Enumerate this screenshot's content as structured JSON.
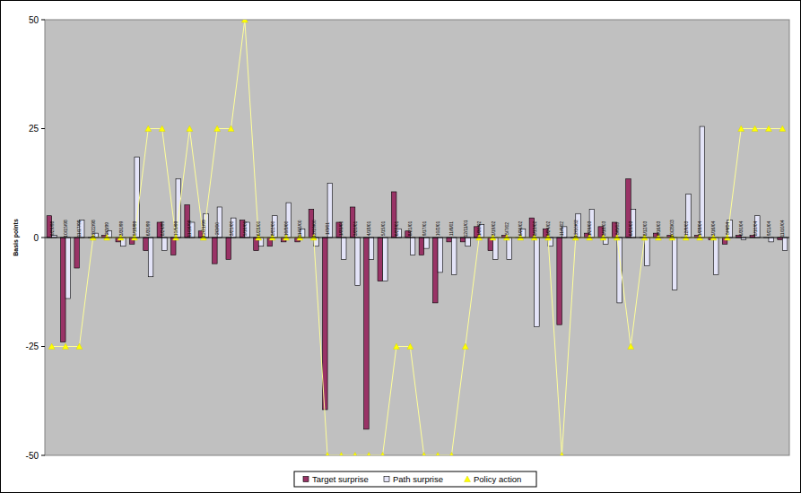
{
  "chart_data": {
    "type": "bar",
    "y_label": "Basis points",
    "categories": [
      "9/29/98",
      "10/15/98",
      "11/17/98",
      "12/22/98",
      "2/3/99",
      "3/30/99",
      "5/18/99",
      "6/30/99",
      "8/24/99",
      "10/5/99",
      "11/16/99",
      "12/21/99",
      "2/2/00",
      "3/21/00",
      "5/16/00",
      "6/28/00",
      "8/22/00",
      "10/3/00",
      "11/15/00",
      "12/19/00",
      "1/3/01",
      "1/31/01",
      "3/20/01",
      "4/18/01",
      "5/15/01",
      "6/27/01",
      "8/21/01",
      "9/17/01",
      "10/2/01",
      "11/6/01",
      "12/11/01",
      "1/30/02",
      "3/19/02",
      "5/7/02",
      "6/26/02",
      "8/13/02",
      "9/24/02",
      "11/6/02",
      "12/10/02",
      "1/29/03",
      "3/18/03",
      "5/6/03",
      "6/25/03",
      "8/12/03",
      "9/16/03",
      "10/28/03",
      "12/9/03",
      "1/28/04",
      "3/16/04",
      "5/4/04",
      "6/30/04",
      "8/10/04",
      "9/21/04",
      "11/10/04"
    ],
    "series": [
      {
        "name": "Target surprise",
        "type": "bar",
        "color": "#993366",
        "values": [
          5,
          -24,
          -7,
          0,
          0.5,
          -1,
          -1.5,
          -3,
          3.5,
          -4,
          7.5,
          1.5,
          -6,
          -5,
          4,
          -3,
          -2,
          -1,
          -1,
          6.5,
          -39.5,
          3.5,
          7,
          -44,
          -10,
          10.5,
          1.5,
          -4,
          -15,
          -1,
          -1,
          2.5,
          -3,
          0.5,
          0,
          4.5,
          2,
          -20,
          0,
          1,
          2.5,
          3.5,
          13.5,
          0,
          1,
          0.5,
          0,
          0.5,
          -0.5,
          -1.5,
          0.5,
          0.5,
          0,
          -0.5
        ]
      },
      {
        "name": "Path surprise",
        "type": "bar",
        "color": "#e4e4f8",
        "values": [
          0.5,
          -14,
          4,
          1,
          1.5,
          -2,
          18.5,
          -9,
          -3,
          13.5,
          3.5,
          5.5,
          7,
          4.5,
          3.5,
          -2,
          5,
          8,
          2,
          -2,
          12.5,
          -5,
          -11,
          -5,
          -10,
          2,
          -4,
          -2.5,
          -8,
          -8.5,
          -2,
          3,
          -5,
          -5,
          2,
          -20.5,
          -2,
          2.5,
          5.5,
          6.5,
          -1.5,
          -15,
          6.5,
          -6.5,
          0,
          -12,
          10,
          25.5,
          -8.5,
          4,
          -0.5,
          5,
          -1,
          -3
        ]
      },
      {
        "name": "Policy action",
        "type": "line",
        "color": "#ffff00",
        "marker": "triangle",
        "values": [
          -25,
          -25,
          -25,
          0,
          0,
          0,
          0,
          25,
          25,
          0,
          25,
          0,
          25,
          25,
          50,
          0,
          0,
          0,
          0,
          0,
          -50,
          -50,
          -50,
          -50,
          -50,
          -25,
          -25,
          -50,
          -50,
          -50,
          -25,
          0,
          0,
          0,
          0,
          0,
          0,
          -50,
          0,
          0,
          0,
          0,
          -25,
          0,
          0,
          0,
          0,
          0,
          0,
          0,
          25,
          25,
          25,
          25
        ]
      }
    ],
    "ylim": [
      -50,
      50
    ],
    "yticks": [
      -50,
      -25,
      0,
      25,
      50
    ],
    "grid": false,
    "legend": "bottom"
  }
}
